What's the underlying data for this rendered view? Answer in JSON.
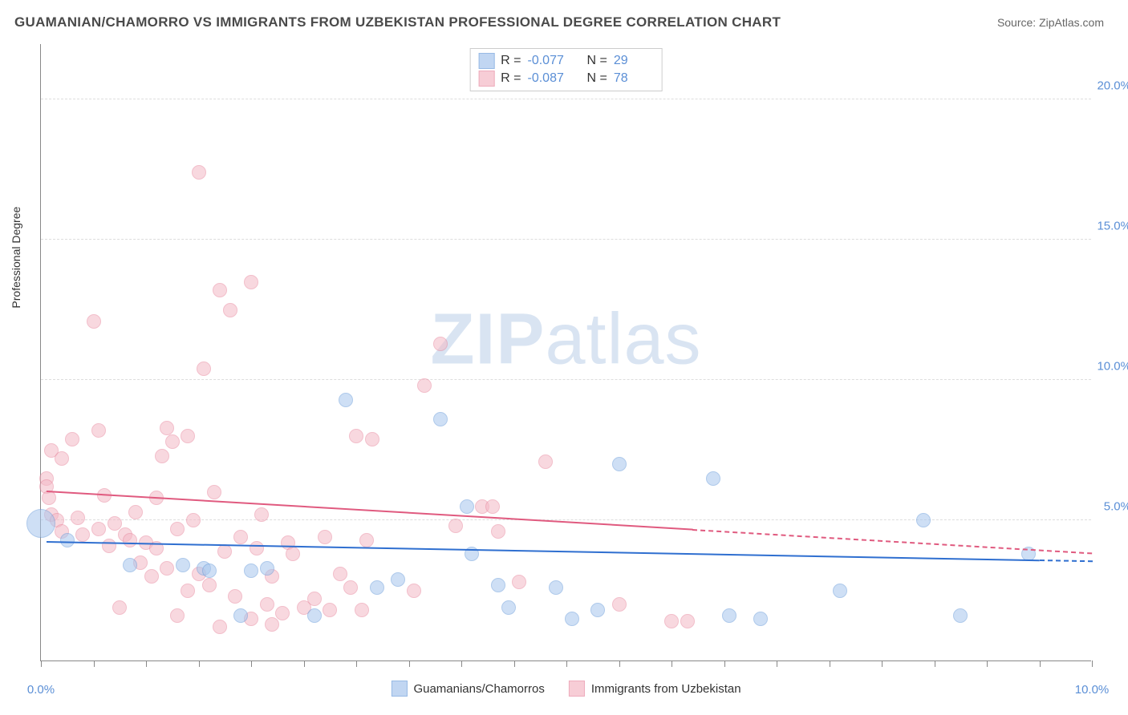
{
  "title": "GUAMANIAN/CHAMORRO VS IMMIGRANTS FROM UZBEKISTAN PROFESSIONAL DEGREE CORRELATION CHART",
  "source": "Source: ZipAtlas.com",
  "y_axis_label": "Professional Degree",
  "watermark_bold": "ZIP",
  "watermark_light": "atlas",
  "chart": {
    "type": "scatter",
    "xlim": [
      0,
      10
    ],
    "ylim": [
      0,
      22
    ],
    "y_ticks": [
      5,
      10,
      15,
      20
    ],
    "y_tick_labels": [
      "5.0%",
      "10.0%",
      "15.0%",
      "20.0%"
    ],
    "x_ticks": [
      0,
      0.5,
      1,
      1.5,
      2,
      2.5,
      3,
      3.5,
      4,
      4.5,
      5,
      5.5,
      6,
      6.5,
      7,
      7.5,
      8,
      8.5,
      9,
      9.5,
      10
    ],
    "x_tick_labels_show": {
      "0": "0.0%",
      "10": "10.0%"
    },
    "background_color": "#ffffff",
    "grid_color": "#e0e0e0",
    "axis_color": "#888888",
    "tick_label_color": "#5b8fd6"
  },
  "series": [
    {
      "name": "Guamanians/Chamorros",
      "fill_color": "#a7c6ed",
      "stroke_color": "#6d9edb",
      "fill_opacity": 0.55,
      "marker_radius": 9,
      "R": "-0.077",
      "N": "29",
      "trend": {
        "x1": 0.05,
        "y1": 4.2,
        "x2": 10.0,
        "y2": 3.5,
        "solid_until_x": 9.5,
        "color": "#2f6fd0"
      },
      "points": [
        {
          "x": 0.0,
          "y": 4.9,
          "r": 18
        },
        {
          "x": 0.25,
          "y": 4.3
        },
        {
          "x": 0.85,
          "y": 3.4
        },
        {
          "x": 1.35,
          "y": 3.4
        },
        {
          "x": 1.55,
          "y": 3.3
        },
        {
          "x": 1.6,
          "y": 3.2
        },
        {
          "x": 1.9,
          "y": 1.6
        },
        {
          "x": 2.0,
          "y": 3.2
        },
        {
          "x": 2.15,
          "y": 3.3
        },
        {
          "x": 2.6,
          "y": 1.6
        },
        {
          "x": 2.9,
          "y": 9.3
        },
        {
          "x": 3.2,
          "y": 2.6
        },
        {
          "x": 3.4,
          "y": 2.9
        },
        {
          "x": 3.8,
          "y": 8.6
        },
        {
          "x": 4.05,
          "y": 5.5
        },
        {
          "x": 4.1,
          "y": 3.8
        },
        {
          "x": 4.35,
          "y": 2.7
        },
        {
          "x": 4.45,
          "y": 1.9
        },
        {
          "x": 4.9,
          "y": 2.6
        },
        {
          "x": 5.05,
          "y": 1.5
        },
        {
          "x": 5.3,
          "y": 1.8
        },
        {
          "x": 5.5,
          "y": 7.0
        },
        {
          "x": 6.4,
          "y": 6.5
        },
        {
          "x": 6.55,
          "y": 1.6
        },
        {
          "x": 6.85,
          "y": 1.5
        },
        {
          "x": 7.6,
          "y": 2.5
        },
        {
          "x": 8.4,
          "y": 5.0
        },
        {
          "x": 8.75,
          "y": 1.6
        },
        {
          "x": 9.4,
          "y": 3.8
        }
      ]
    },
    {
      "name": "Immigrants from Uzbekistan",
      "fill_color": "#f4b9c6",
      "stroke_color": "#e88aa0",
      "fill_opacity": 0.55,
      "marker_radius": 9,
      "R": "-0.087",
      "N": "78",
      "trend": {
        "x1": 0.05,
        "y1": 6.0,
        "x2": 10.0,
        "y2": 3.8,
        "solid_until_x": 6.2,
        "color": "#e05a7f"
      },
      "points": [
        {
          "x": 0.05,
          "y": 6.5
        },
        {
          "x": 0.05,
          "y": 6.2
        },
        {
          "x": 0.08,
          "y": 5.8
        },
        {
          "x": 0.1,
          "y": 7.5
        },
        {
          "x": 0.1,
          "y": 5.2
        },
        {
          "x": 0.15,
          "y": 5.0
        },
        {
          "x": 0.2,
          "y": 7.2
        },
        {
          "x": 0.2,
          "y": 4.6
        },
        {
          "x": 0.3,
          "y": 7.9
        },
        {
          "x": 0.35,
          "y": 5.1
        },
        {
          "x": 0.4,
          "y": 4.5
        },
        {
          "x": 0.5,
          "y": 12.1
        },
        {
          "x": 0.55,
          "y": 8.2
        },
        {
          "x": 0.55,
          "y": 4.7
        },
        {
          "x": 0.6,
          "y": 5.9
        },
        {
          "x": 0.65,
          "y": 4.1
        },
        {
          "x": 0.7,
          "y": 4.9
        },
        {
          "x": 0.75,
          "y": 1.9
        },
        {
          "x": 0.8,
          "y": 4.5
        },
        {
          "x": 0.85,
          "y": 4.3
        },
        {
          "x": 0.9,
          "y": 5.3
        },
        {
          "x": 0.95,
          "y": 3.5
        },
        {
          "x": 1.0,
          "y": 4.2
        },
        {
          "x": 1.05,
          "y": 3.0
        },
        {
          "x": 1.1,
          "y": 5.8
        },
        {
          "x": 1.1,
          "y": 4.0
        },
        {
          "x": 1.15,
          "y": 7.3
        },
        {
          "x": 1.2,
          "y": 8.3
        },
        {
          "x": 1.2,
          "y": 3.3
        },
        {
          "x": 1.25,
          "y": 7.8
        },
        {
          "x": 1.3,
          "y": 4.7
        },
        {
          "x": 1.3,
          "y": 1.6
        },
        {
          "x": 1.4,
          "y": 2.5
        },
        {
          "x": 1.4,
          "y": 8.0
        },
        {
          "x": 1.45,
          "y": 5.0
        },
        {
          "x": 1.5,
          "y": 17.4
        },
        {
          "x": 1.5,
          "y": 3.1
        },
        {
          "x": 1.55,
          "y": 10.4
        },
        {
          "x": 1.6,
          "y": 2.7
        },
        {
          "x": 1.65,
          "y": 6.0
        },
        {
          "x": 1.7,
          "y": 13.2
        },
        {
          "x": 1.7,
          "y": 1.2
        },
        {
          "x": 1.75,
          "y": 3.9
        },
        {
          "x": 1.8,
          "y": 12.5
        },
        {
          "x": 1.85,
          "y": 2.3
        },
        {
          "x": 1.9,
          "y": 4.4
        },
        {
          "x": 2.0,
          "y": 13.5
        },
        {
          "x": 2.0,
          "y": 1.5
        },
        {
          "x": 2.05,
          "y": 4.0
        },
        {
          "x": 2.1,
          "y": 5.2
        },
        {
          "x": 2.15,
          "y": 2.0
        },
        {
          "x": 2.2,
          "y": 3.0
        },
        {
          "x": 2.2,
          "y": 1.3
        },
        {
          "x": 2.3,
          "y": 1.7
        },
        {
          "x": 2.35,
          "y": 4.2
        },
        {
          "x": 2.4,
          "y": 3.8
        },
        {
          "x": 2.5,
          "y": 1.9
        },
        {
          "x": 2.6,
          "y": 2.2
        },
        {
          "x": 2.7,
          "y": 4.4
        },
        {
          "x": 2.75,
          "y": 1.8
        },
        {
          "x": 2.85,
          "y": 3.1
        },
        {
          "x": 2.95,
          "y": 2.6
        },
        {
          "x": 3.0,
          "y": 8.0
        },
        {
          "x": 3.05,
          "y": 1.8
        },
        {
          "x": 3.1,
          "y": 4.3
        },
        {
          "x": 3.15,
          "y": 7.9
        },
        {
          "x": 3.55,
          "y": 2.5
        },
        {
          "x": 3.65,
          "y": 9.8
        },
        {
          "x": 3.8,
          "y": 11.3
        },
        {
          "x": 3.95,
          "y": 4.8
        },
        {
          "x": 4.2,
          "y": 5.5
        },
        {
          "x": 4.3,
          "y": 5.5
        },
        {
          "x": 4.35,
          "y": 4.6
        },
        {
          "x": 4.55,
          "y": 2.8
        },
        {
          "x": 4.8,
          "y": 7.1
        },
        {
          "x": 5.5,
          "y": 2.0
        },
        {
          "x": 6.0,
          "y": 1.4
        },
        {
          "x": 6.15,
          "y": 1.4
        }
      ]
    }
  ],
  "legend_top_labels": {
    "R": "R =",
    "N": "N ="
  },
  "legend_bottom": [
    {
      "label": "Guamanians/Chamorros",
      "fill": "#a7c6ed",
      "stroke": "#6d9edb"
    },
    {
      "label": "Immigrants from Uzbekistan",
      "fill": "#f4b9c6",
      "stroke": "#e88aa0"
    }
  ]
}
